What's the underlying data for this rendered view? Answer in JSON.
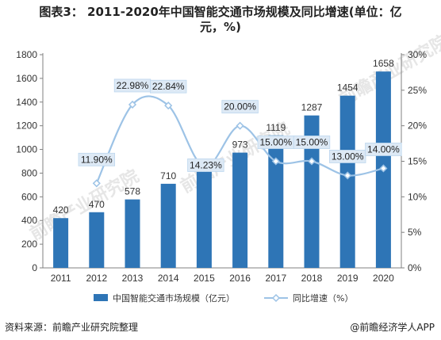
{
  "title_line1": "图表3： 2011-2020年中国智能交通市场规模及同比增速(单位：亿",
  "title_line2": "元，%)",
  "source": "资料来源：前瞻产业研究院整理",
  "credit": "@前瞻经济学人APP",
  "watermark": "前瞻产业研究院",
  "chart_data": {
    "type": "bar",
    "categories": [
      "2011",
      "2012",
      "2013",
      "2014",
      "2015",
      "2016",
      "2017",
      "2018",
      "2019",
      "2020"
    ],
    "series": [
      {
        "name": "中国智能交通市场规模（亿元）",
        "type": "bar",
        "axis": "left",
        "values": [
          420,
          470,
          578,
          710,
          811,
          973,
          1119,
          1287,
          1454,
          1658
        ],
        "labels": [
          "420",
          "470",
          "578",
          "710",
          "811",
          "973",
          "1119",
          "1287",
          "1454",
          "1658"
        ],
        "color": "#2E75B6"
      },
      {
        "name": "同比增速（%）",
        "type": "line",
        "axis": "right",
        "values": [
          null,
          11.9,
          22.98,
          22.84,
          14.23,
          20.0,
          15.0,
          15.0,
          13.0,
          14.0
        ],
        "labels": [
          "",
          "11.90%",
          "22.98%",
          "22.84%",
          "14.23%",
          "20.00%",
          "15.00%",
          "15.00%",
          "13.00%",
          "14.00%"
        ],
        "color": "#9DC3E6"
      }
    ],
    "y_left": {
      "min": 0,
      "max": 1800,
      "ticks": [
        "0",
        "200",
        "400",
        "600",
        "800",
        "1000",
        "1200",
        "1400",
        "1600",
        "1800"
      ]
    },
    "y_right": {
      "min": 0,
      "max": 30,
      "ticks": [
        "0%",
        "5%",
        "10%",
        "15%",
        "20%",
        "25%",
        "30%"
      ]
    },
    "legend": "bottom",
    "grid": false
  }
}
